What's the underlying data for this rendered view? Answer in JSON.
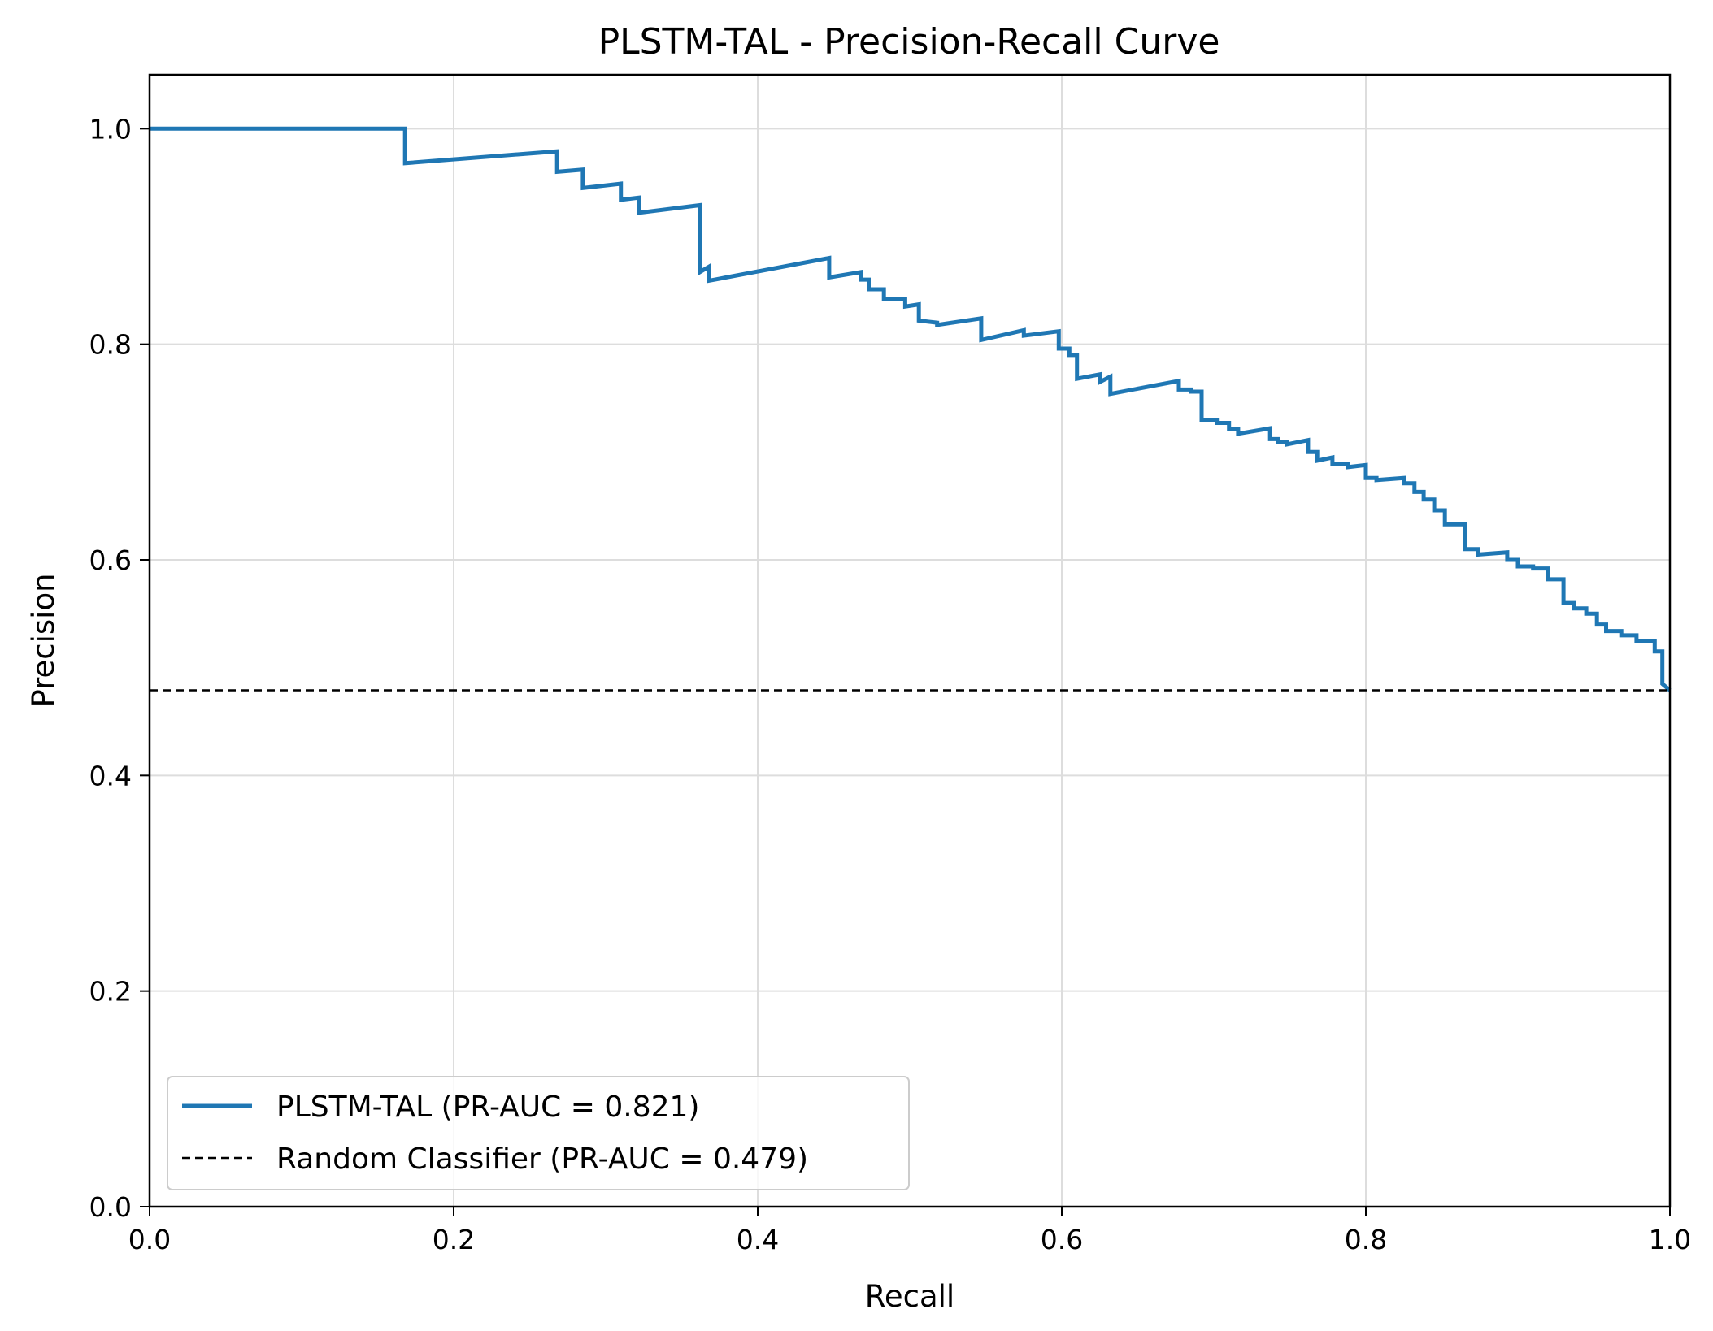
{
  "chart_data": {
    "type": "line",
    "title": "PLSTM-TAL - Precision-Recall Curve",
    "xlabel": "Recall",
    "ylabel": "Precision",
    "xlim": [
      0.0,
      1.0
    ],
    "ylim": [
      0.0,
      1.05
    ],
    "xticks": [
      0.0,
      0.2,
      0.4,
      0.6,
      0.8,
      1.0
    ],
    "yticks": [
      0.0,
      0.2,
      0.4,
      0.6,
      0.8,
      1.0
    ],
    "xtick_labels": [
      "0.0",
      "0.2",
      "0.4",
      "0.6",
      "0.8",
      "1.0"
    ],
    "ytick_labels": [
      "0.0",
      "0.2",
      "0.4",
      "0.6",
      "0.8",
      "1.0"
    ],
    "grid": true,
    "legend_position": "lower-left",
    "series": [
      {
        "name": "PLSTM-TAL (PR-AUC = 0.821)",
        "color": "#1f77b4",
        "style": "solid",
        "x": [
          0.0,
          0.168,
          0.168,
          0.268,
          0.268,
          0.285,
          0.285,
          0.31,
          0.31,
          0.322,
          0.322,
          0.362,
          0.362,
          0.368,
          0.368,
          0.447,
          0.447,
          0.468,
          0.468,
          0.473,
          0.473,
          0.483,
          0.483,
          0.497,
          0.497,
          0.506,
          0.506,
          0.518,
          0.518,
          0.547,
          0.547,
          0.575,
          0.575,
          0.598,
          0.598,
          0.605,
          0.605,
          0.61,
          0.61,
          0.625,
          0.625,
          0.632,
          0.632,
          0.677,
          0.677,
          0.685,
          0.685,
          0.692,
          0.692,
          0.702,
          0.702,
          0.71,
          0.71,
          0.716,
          0.716,
          0.737,
          0.737,
          0.742,
          0.742,
          0.748,
          0.748,
          0.762,
          0.762,
          0.768,
          0.768,
          0.778,
          0.778,
          0.788,
          0.788,
          0.8,
          0.8,
          0.807,
          0.807,
          0.825,
          0.825,
          0.832,
          0.832,
          0.838,
          0.838,
          0.845,
          0.845,
          0.852,
          0.852,
          0.865,
          0.865,
          0.874,
          0.874,
          0.893,
          0.893,
          0.9,
          0.9,
          0.91,
          0.91,
          0.92,
          0.92,
          0.93,
          0.93,
          0.937,
          0.937,
          0.945,
          0.945,
          0.952,
          0.952,
          0.958,
          0.958,
          0.968,
          0.968,
          0.978,
          0.978,
          0.99,
          0.99,
          0.995,
          0.995,
          1.0
        ],
        "y": [
          1.0,
          1.0,
          0.968,
          0.979,
          0.96,
          0.962,
          0.945,
          0.949,
          0.934,
          0.936,
          0.922,
          0.929,
          0.867,
          0.872,
          0.859,
          0.88,
          0.862,
          0.867,
          0.86,
          0.86,
          0.851,
          0.851,
          0.842,
          0.842,
          0.835,
          0.837,
          0.822,
          0.82,
          0.818,
          0.824,
          0.804,
          0.813,
          0.808,
          0.812,
          0.796,
          0.796,
          0.79,
          0.79,
          0.768,
          0.772,
          0.765,
          0.77,
          0.754,
          0.766,
          0.758,
          0.758,
          0.756,
          0.756,
          0.73,
          0.73,
          0.727,
          0.727,
          0.721,
          0.721,
          0.717,
          0.722,
          0.712,
          0.712,
          0.709,
          0.709,
          0.707,
          0.711,
          0.7,
          0.7,
          0.692,
          0.695,
          0.689,
          0.689,
          0.686,
          0.688,
          0.676,
          0.676,
          0.674,
          0.676,
          0.671,
          0.671,
          0.663,
          0.663,
          0.656,
          0.656,
          0.646,
          0.646,
          0.633,
          0.633,
          0.61,
          0.61,
          0.605,
          0.607,
          0.6,
          0.6,
          0.594,
          0.594,
          0.592,
          0.592,
          0.582,
          0.582,
          0.56,
          0.56,
          0.555,
          0.555,
          0.55,
          0.55,
          0.54,
          0.54,
          0.534,
          0.534,
          0.53,
          0.53,
          0.525,
          0.525,
          0.515,
          0.515,
          0.485,
          0.479
        ]
      },
      {
        "name": "Random Classifier (PR-AUC = 0.479)",
        "color": "#000000",
        "style": "dashed",
        "x": [
          0.0,
          1.0
        ],
        "y": [
          0.479,
          0.479
        ]
      }
    ]
  }
}
